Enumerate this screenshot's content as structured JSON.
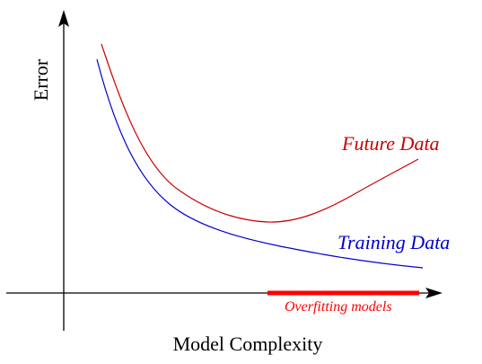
{
  "axes": {
    "y_label": "Error",
    "x_label": "Model Complexity"
  },
  "curves": {
    "future": {
      "label": "Future Data",
      "color": "#cc0000"
    },
    "training": {
      "label": "Training Data",
      "color": "#0000cc"
    }
  },
  "region": {
    "label": "Overfitting models",
    "color": "#ff0000"
  },
  "colors": {
    "axis": "#000000"
  }
}
